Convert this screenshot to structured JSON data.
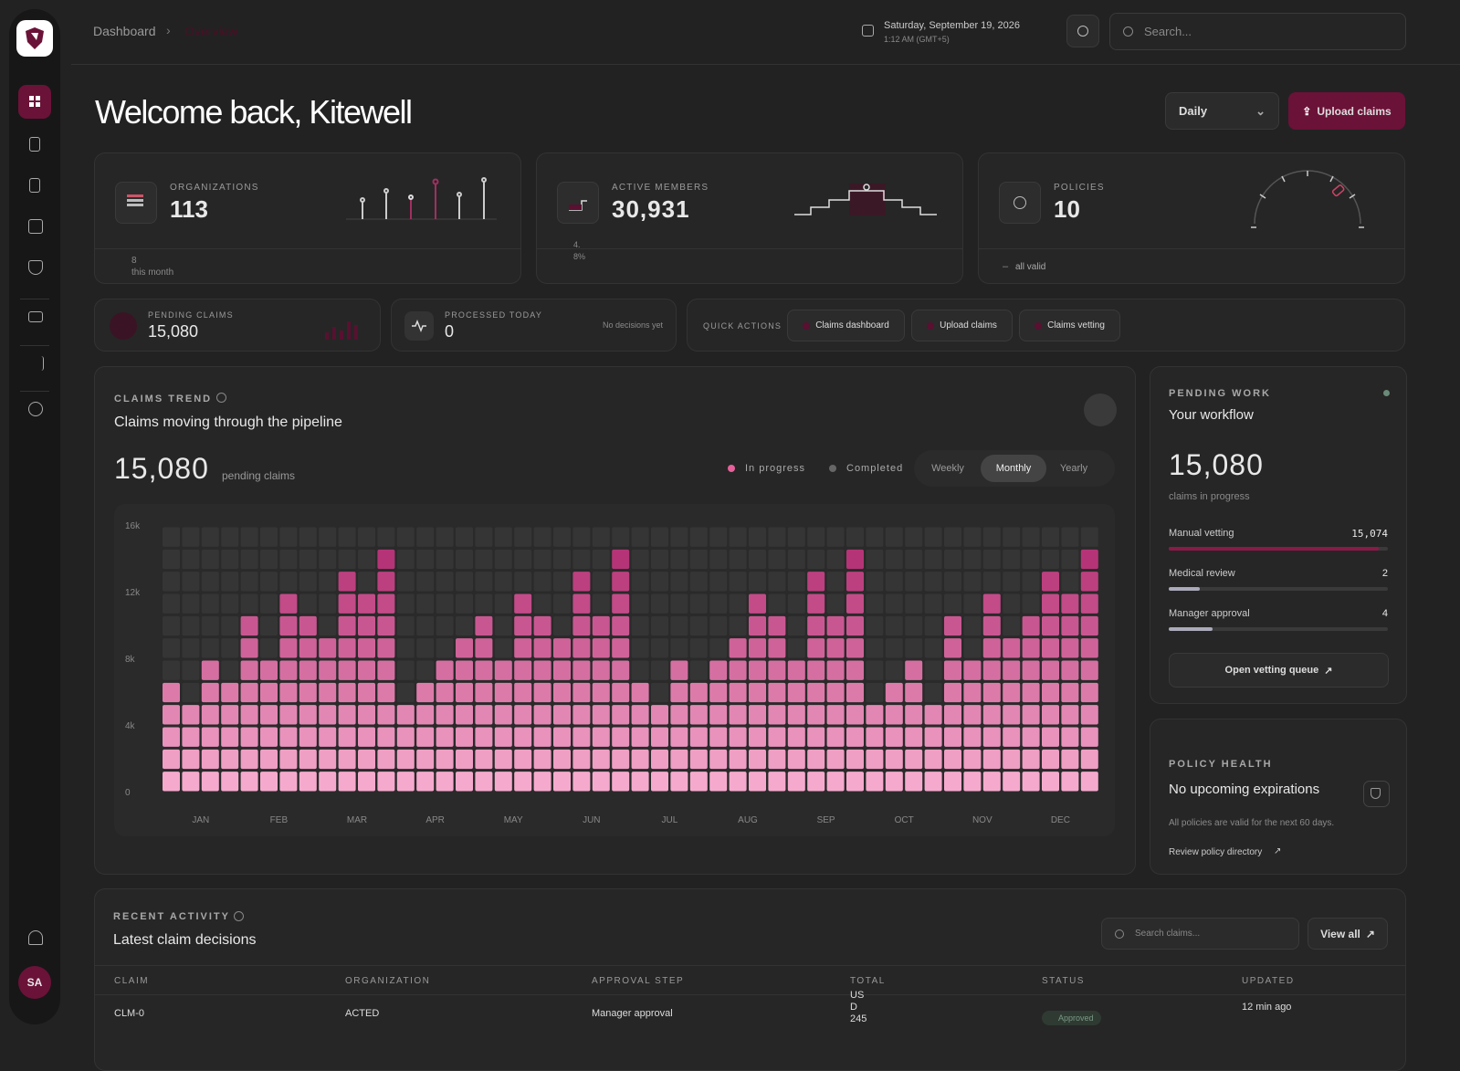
{
  "header": {
    "breadcrumb": [
      "Dashboard",
      "Overview"
    ],
    "date": "Saturday, September 19, 2026",
    "time": "1:12 AM (GMT+5)",
    "search_placeholder": "Search..."
  },
  "sidebar": {
    "avatar": "SA"
  },
  "welcome": {
    "title": "Welcome back, Kitewell",
    "period": "Daily",
    "upload": "Upload claims"
  },
  "kpis": [
    {
      "label": "ORGANIZATIONS",
      "value": "113",
      "note": "8",
      "note_label": "this month"
    },
    {
      "label": "ACTIVE MEMBERS",
      "value": "30,931",
      "note": "4.8%"
    },
    {
      "label": "POLICIES",
      "value": "10",
      "note": "all valid"
    }
  ],
  "stats": [
    {
      "label": "PENDING CLAIMS",
      "value": "15,080"
    },
    {
      "label": "PROCESSED TODAY",
      "value": "0",
      "note": "No decisions yet"
    }
  ],
  "quick_actions": {
    "label": "QUICK ACTIONS",
    "items": [
      "Claims dashboard",
      "Upload claims",
      "Claims vetting"
    ]
  },
  "claims_trend": {
    "label": "CLAIMS TREND",
    "subtitle": "Claims moving through the pipeline",
    "total": "15,080",
    "total_label": "pending claims",
    "legend": [
      "In progress",
      "Completed"
    ],
    "periods": [
      "Weekly",
      "Monthly",
      "Yearly"
    ],
    "active_period": "Monthly",
    "chart": {
      "type": "heatmap",
      "categories": [
        null,
        "JAN",
        null,
        null,
        null,
        "FEB",
        null,
        null,
        null,
        "MAR",
        null,
        null,
        null,
        "APR",
        null,
        null,
        null,
        "MAY",
        null,
        null,
        null,
        "JUN",
        null,
        null,
        null,
        "JUL",
        null,
        null,
        null,
        "AUG",
        null,
        null,
        null,
        "SEP",
        null,
        null,
        null,
        "OCT",
        null,
        null,
        null,
        "NOV",
        null,
        null,
        null,
        "DEC",
        null,
        null
      ],
      "values": [
        6700,
        5300,
        8000,
        6700,
        10700,
        8000,
        12000,
        10700,
        9300,
        13300,
        12000,
        14700,
        5300,
        6700,
        8000,
        9300,
        10700,
        8000,
        12000,
        10700,
        9300,
        13300,
        10700,
        14700,
        6700,
        5300,
        8000,
        6700,
        8000,
        9300,
        12000,
        10700,
        8000,
        13300,
        10700,
        14700,
        5300,
        6700,
        8000,
        5300,
        10700,
        8000,
        12000,
        9300,
        10700,
        13300,
        12000,
        14700
      ],
      "ylim": [
        0,
        16000
      ],
      "yticks": [
        0,
        {
          "value": 4000,
          "label": "4k"
        },
        {
          "value": 8000,
          "label": "8k"
        },
        {
          "value": 12000,
          "label": "12k"
        },
        {
          "value": 16000,
          "label": "16k"
        }
      ]
    }
  },
  "pending_work": {
    "label": "PENDING WORK",
    "title": "Your workflow",
    "total": "15,080",
    "total_label": "claims in progress",
    "steps": [
      {
        "name": "Manual vetting",
        "value": "15,074"
      },
      {
        "name": "Medical review",
        "value": "2"
      },
      {
        "name": "Manager approval",
        "value": "4"
      }
    ],
    "button": "Open vetting queue"
  },
  "policy_health": {
    "label": "POLICY HEALTH",
    "title": "No upcoming expirations",
    "text": "All policies are valid for the next 60 days.",
    "link": "Review policy directory"
  },
  "recent_activity": {
    "label": "RECENT ACTIVITY",
    "title": "Latest claim decisions",
    "search_placeholder": "Search claims...",
    "view_all": "View all",
    "table": {
      "columns": [
        "CLAIM",
        "ORGANIZATION",
        "APPROVAL STEP",
        "TOTAL",
        "STATUS",
        "UPDATED"
      ],
      "rows": [
        [
          "CLM-0",
          "ACTED",
          "Manager approval",
          "USD 245",
          "Approved",
          "12 min ago"
        ]
      ]
    }
  }
}
